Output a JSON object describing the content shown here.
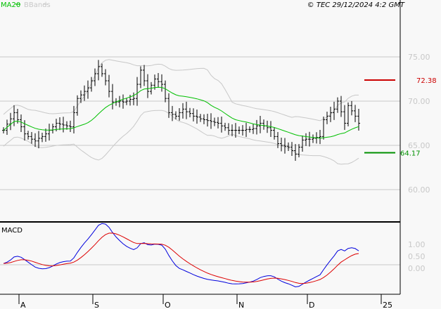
{
  "header": {
    "legend_ma": "MA20",
    "legend_bbands": "BBands",
    "copyright": "© TEC 29/12/2024 4:2 GMT"
  },
  "colors": {
    "background": "#f8f8f8",
    "ma20": "#00c000",
    "bbands": "#c8c8c8",
    "bars": "#000000",
    "resistance": "#cc0000",
    "support": "#009000",
    "macd": "#0000dd",
    "signal": "#dd0000",
    "grid": "#c8c8c8"
  },
  "chart_data": [
    {
      "type": "ohlc",
      "y_ticks": [
        "75.00",
        "70.00",
        "65.00",
        "60.00"
      ],
      "y_tick_values": [
        75,
        70,
        65,
        60
      ],
      "ylim": [
        57.5,
        81.4
      ],
      "x_ticks": [
        "A",
        "S",
        "O",
        "N",
        "D",
        "25"
      ],
      "x_tick_index": [
        4,
        25,
        45,
        66,
        86,
        107
      ],
      "grid": true,
      "indicators": [
        "MA20",
        "BBands"
      ],
      "resistance": {
        "value": 72.38,
        "label": "72.38"
      },
      "support": {
        "value": 64.17,
        "label": "64.17"
      },
      "closes": [
        66.7,
        67.4,
        68.0,
        68.7,
        67.9,
        67.1,
        66.3,
        66.0,
        65.7,
        65.5,
        65.8,
        66.0,
        66.3,
        66.7,
        67.1,
        67.5,
        67.4,
        67.3,
        67.2,
        67.1,
        68.7,
        70.3,
        70.7,
        71.1,
        71.5,
        72.3,
        73.1,
        73.9,
        73.1,
        72.3,
        71.1,
        69.9,
        69.9,
        70.0,
        69.9,
        70.0,
        70.2,
        70.3,
        71.9,
        73.5,
        72.3,
        71.1,
        71.8,
        72.5,
        72.2,
        71.9,
        70.3,
        68.7,
        68.5,
        68.3,
        68.7,
        69.1,
        68.8,
        68.6,
        68.3,
        68.2,
        68.0,
        67.9,
        67.8,
        67.7,
        67.6,
        67.5,
        67.2,
        67.0,
        66.7,
        66.7,
        66.7,
        66.7,
        66.7,
        66.8,
        66.8,
        66.9,
        67.2,
        67.5,
        67.2,
        67.0,
        66.7,
        66.0,
        65.2,
        65.0,
        64.9,
        64.8,
        64.4,
        64.0,
        64.8,
        65.6,
        65.7,
        65.7,
        65.8,
        65.9,
        66.0,
        67.9,
        68.3,
        68.7,
        69.1,
        70.0,
        68.8,
        67.5,
        69.5,
        68.9,
        68.3,
        67.5
      ]
    },
    {
      "type": "line",
      "title": "MACD",
      "y_ticks": [
        "1.00",
        "0.50",
        "0.00"
      ],
      "y_tick_values": [
        1.0,
        0.5,
        0.0
      ],
      "ylim": [
        -1.0,
        1.95
      ],
      "series": [
        "MACD",
        "Signal"
      ]
    }
  ]
}
